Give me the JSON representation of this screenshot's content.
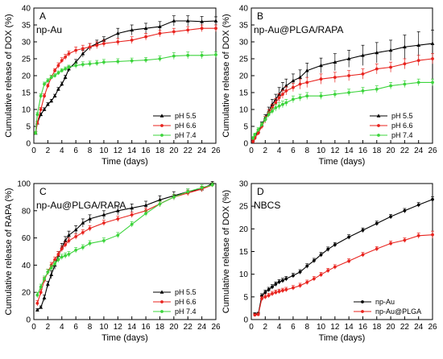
{
  "chart_data": [
    {
      "type": "line",
      "panel_letter": "A",
      "panel_title": "np-Au",
      "xlabel": "Time (days)",
      "ylabel": "Cumulative release of DOX (%)",
      "xlim": [
        0,
        26
      ],
      "ylim": [
        0,
        40
      ],
      "xticks": [
        0,
        2,
        4,
        6,
        8,
        10,
        12,
        14,
        16,
        18,
        20,
        22,
        24,
        26
      ],
      "yticks": [
        0,
        5,
        10,
        15,
        20,
        25,
        30,
        35,
        40
      ],
      "legend_position": "bottom-right",
      "series": [
        {
          "name": "pH 5.5",
          "color": "#000000",
          "marker": "triangle",
          "x": [
            0.25,
            0.5,
            1,
            1.5,
            2,
            2.5,
            3,
            3.5,
            4,
            4.5,
            5,
            6,
            7,
            8,
            9,
            10,
            12,
            14,
            16,
            18,
            20,
            22,
            24,
            26
          ],
          "y": [
            3,
            6,
            8.5,
            10,
            11.5,
            12.5,
            14,
            16,
            17.5,
            19.5,
            22,
            24,
            26.5,
            28.5,
            29.5,
            30.5,
            32.5,
            33.5,
            34,
            34.5,
            36.2,
            36.2,
            36,
            36.2
          ],
          "err": [
            0.5,
            0.5,
            0.5,
            0.5,
            0.5,
            0.5,
            0.5,
            0.5,
            0.6,
            0.6,
            0.8,
            0.8,
            1,
            1,
            1,
            1,
            1.5,
            1.5,
            1.5,
            1.5,
            1.5,
            1.5,
            1.5,
            1.2
          ]
        },
        {
          "name": "pH 6.6",
          "color": "#e8231e",
          "marker": "circle",
          "x": [
            0.25,
            0.5,
            1,
            1.5,
            2,
            2.5,
            3,
            3.5,
            4,
            4.5,
            5,
            6,
            7,
            8,
            9,
            10,
            12,
            14,
            16,
            18,
            20,
            22,
            24,
            26
          ],
          "y": [
            3,
            6,
            10,
            14,
            17,
            19.5,
            21.5,
            23,
            24.5,
            25.5,
            26.5,
            27.5,
            28,
            28.5,
            29,
            29.5,
            30,
            30.5,
            31.5,
            32.5,
            33,
            33.5,
            34,
            34
          ],
          "err": [
            0.5,
            0.5,
            0.6,
            0.6,
            0.6,
            0.6,
            0.6,
            0.8,
            0.8,
            0.8,
            0.8,
            1,
            1,
            1,
            1,
            1,
            1,
            1,
            1,
            1,
            1,
            1,
            1,
            1
          ]
        },
        {
          "name": "pH 7.4",
          "color": "#3cd43c",
          "marker": "circle",
          "x": [
            0.25,
            0.5,
            1,
            1.5,
            2,
            2.5,
            3,
            3.5,
            4,
            4.5,
            5,
            6,
            7,
            8,
            9,
            10,
            12,
            14,
            16,
            18,
            20,
            22,
            24,
            26
          ],
          "y": [
            3,
            8.5,
            14,
            17.5,
            18.5,
            19.5,
            20,
            20.8,
            21.5,
            22,
            22.5,
            23,
            23.3,
            23.5,
            23.7,
            24,
            24.2,
            24.4,
            24.6,
            25,
            25.8,
            26,
            26,
            26.2
          ],
          "err": [
            0.5,
            0.6,
            0.6,
            0.6,
            0.6,
            0.6,
            0.6,
            0.6,
            0.6,
            0.6,
            0.6,
            0.8,
            0.8,
            0.8,
            0.8,
            0.8,
            0.8,
            0.8,
            0.8,
            0.8,
            1,
            1,
            1,
            0.8
          ]
        }
      ]
    },
    {
      "type": "line",
      "panel_letter": "B",
      "panel_title": "np-Au@PLGA/RAPA",
      "xlabel": "Time (days)",
      "ylabel": "Cumulative release of DOX (%)",
      "xlim": [
        0,
        26
      ],
      "ylim": [
        0,
        40
      ],
      "xticks": [
        0,
        2,
        4,
        6,
        8,
        10,
        12,
        14,
        16,
        18,
        20,
        22,
        24,
        26
      ],
      "yticks": [
        0,
        5,
        10,
        15,
        20,
        25,
        30,
        35,
        40
      ],
      "legend_position": "bottom-right",
      "series": [
        {
          "name": "pH 5.5",
          "color": "#000000",
          "marker": "triangle",
          "x": [
            0.25,
            0.5,
            1,
            1.5,
            2,
            2.5,
            3,
            3.5,
            4,
            4.5,
            5,
            6,
            7,
            8,
            10,
            12,
            14,
            16,
            18,
            20,
            22,
            24,
            26
          ],
          "y": [
            1,
            2,
            3.5,
            5.5,
            7.5,
            9.5,
            11.5,
            13,
            14.5,
            16,
            17,
            18.5,
            19.5,
            21.5,
            23,
            24,
            25,
            26,
            26.8,
            27.5,
            28.5,
            29,
            29.5
          ],
          "err": [
            0.5,
            0.5,
            0.6,
            0.8,
            1,
            1.2,
            1.5,
            1.5,
            2,
            2,
            2,
            2,
            2.2,
            2.2,
            2.2,
            2.5,
            2.5,
            3,
            3,
            3,
            3.5,
            4,
            4
          ]
        },
        {
          "name": "pH 6.6",
          "color": "#e8231e",
          "marker": "circle",
          "x": [
            0.25,
            0.5,
            1,
            1.5,
            2,
            2.5,
            3,
            3.5,
            4,
            4.5,
            5,
            6,
            7,
            8,
            10,
            12,
            14,
            16,
            18,
            20,
            22,
            24,
            26
          ],
          "y": [
            0.5,
            1.5,
            3,
            5,
            7,
            9,
            10.5,
            12,
            13.5,
            14.5,
            15.5,
            16.5,
            17.5,
            18,
            19,
            19.5,
            20,
            20.5,
            22,
            22.5,
            23.5,
            24.5,
            25
          ],
          "err": [
            0.5,
            0.5,
            0.6,
            0.8,
            1,
            1,
            1,
            1.2,
            1.2,
            1.2,
            1.2,
            1.2,
            1.5,
            1.5,
            1.5,
            1.5,
            1.5,
            1.5,
            1.5,
            1.5,
            1.5,
            1.5,
            1.5
          ]
        },
        {
          "name": "pH 7.4",
          "color": "#3cd43c",
          "marker": "circle",
          "x": [
            0.25,
            0.5,
            1,
            1.5,
            2,
            2.5,
            3,
            3.5,
            4,
            4.5,
            5,
            6,
            7,
            8,
            10,
            12,
            14,
            16,
            18,
            20,
            22,
            24,
            26
          ],
          "y": [
            1.5,
            2.5,
            4,
            5.5,
            7,
            8.5,
            9.5,
            10.5,
            11,
            11.5,
            12,
            13,
            13.5,
            14,
            14,
            14.5,
            15,
            15.5,
            16,
            17,
            17.5,
            18,
            18
          ],
          "err": [
            0.5,
            0.5,
            0.6,
            0.6,
            0.8,
            0.8,
            0.8,
            1,
            1,
            1,
            1,
            1,
            1,
            1,
            1,
            1,
            1,
            1,
            1,
            1,
            1,
            1,
            1
          ]
        }
      ]
    },
    {
      "type": "line",
      "panel_letter": "C",
      "panel_title": "np-Au@PLGA/RAPA",
      "xlabel": "Time (days)",
      "ylabel": "Cumulative release of RAPA (%)",
      "xlim": [
        0,
        26
      ],
      "ylim": [
        0,
        100
      ],
      "xticks": [
        0,
        2,
        4,
        6,
        8,
        10,
        12,
        14,
        16,
        18,
        20,
        22,
        24,
        26
      ],
      "yticks": [
        0,
        20,
        40,
        60,
        80,
        100
      ],
      "legend_position": "bottom-right",
      "series": [
        {
          "name": "pH 5.5",
          "color": "#000000",
          "marker": "triangle",
          "x": [
            0.5,
            1,
            1.5,
            2,
            2.5,
            3,
            3.5,
            4,
            4.5,
            5,
            6,
            7,
            8,
            10,
            12,
            14,
            16,
            18,
            20,
            22,
            24,
            25.5
          ],
          "y": [
            7,
            9,
            16,
            26,
            33,
            40,
            47,
            53,
            58,
            62,
            66,
            71,
            74,
            77,
            80,
            82,
            84,
            88,
            91,
            94,
            96,
            100
          ],
          "err": [
            1,
            1,
            2,
            2,
            3,
            3,
            3,
            3,
            3,
            3,
            3,
            3,
            3,
            3,
            3,
            3,
            3,
            3,
            3,
            2,
            2,
            1.5
          ]
        },
        {
          "name": "pH 6.6",
          "color": "#e8231e",
          "marker": "circle",
          "x": [
            0.5,
            1,
            1.5,
            2,
            2.5,
            3,
            3.5,
            4,
            4.5,
            5,
            6,
            7,
            8,
            10,
            12,
            14,
            16,
            18,
            20,
            22,
            24,
            25.5
          ],
          "y": [
            12,
            20,
            29,
            35,
            40,
            44,
            48,
            52,
            55,
            58,
            61,
            64,
            67,
            71,
            74,
            77,
            80,
            85,
            90,
            93,
            96,
            99
          ],
          "err": [
            2,
            2,
            2,
            2,
            2,
            2,
            2,
            2,
            2,
            2,
            2,
            2,
            2,
            2,
            2,
            2,
            2,
            2,
            2,
            2,
            2,
            1.5
          ]
        },
        {
          "name": "pH 7.4",
          "color": "#3cd43c",
          "marker": "circle",
          "x": [
            0.5,
            1,
            1.5,
            2,
            2.5,
            3,
            3.5,
            4,
            4.5,
            5,
            6,
            7,
            8,
            10,
            12,
            14,
            16,
            18,
            20,
            22,
            24,
            25.5
          ],
          "y": [
            18,
            24,
            30,
            35,
            38,
            41,
            44,
            46,
            47,
            48,
            51,
            53,
            56,
            58,
            62,
            70,
            78,
            85,
            90,
            94,
            97,
            99
          ],
          "err": [
            2,
            2,
            2,
            2,
            2,
            2,
            2,
            2,
            2,
            2,
            2,
            2,
            2,
            2,
            2,
            2,
            2,
            2,
            2,
            2,
            2,
            1.5
          ]
        }
      ]
    },
    {
      "type": "line",
      "panel_letter": "D",
      "panel_title": "NBCS",
      "xlabel": "Time (days)",
      "ylabel": "Cumulative release of DOX (%)",
      "xlim": [
        0,
        26
      ],
      "ylim": [
        0,
        30
      ],
      "xticks": [
        0,
        2,
        4,
        6,
        8,
        10,
        12,
        14,
        16,
        18,
        20,
        22,
        24,
        26
      ],
      "yticks": [
        0,
        5,
        10,
        15,
        20,
        25,
        30
      ],
      "legend_position": "bottom-right",
      "series": [
        {
          "name": "np-Au",
          "color": "#000000",
          "marker": "circle",
          "x": [
            0.5,
            1,
            1.5,
            2,
            2.5,
            3,
            3.5,
            4,
            4.5,
            5,
            6,
            7,
            8,
            9,
            10,
            11,
            12,
            14,
            16,
            18,
            20,
            22,
            24,
            26
          ],
          "y": [
            1.2,
            1.3,
            5.2,
            6.0,
            6.6,
            7.2,
            7.8,
            8.3,
            8.6,
            9.0,
            9.7,
            10.5,
            11.8,
            13.0,
            14.3,
            15.5,
            16.5,
            18.2,
            19.7,
            21.2,
            22.7,
            24.0,
            25.3,
            26.5
          ],
          "err": [
            0.3,
            0.3,
            0.5,
            0.5,
            0.5,
            0.5,
            0.5,
            0.5,
            0.5,
            0.5,
            0.5,
            0.5,
            0.5,
            0.5,
            0.5,
            0.5,
            0.5,
            0.5,
            0.5,
            0.5,
            0.5,
            0.5,
            0.5,
            0.6
          ]
        },
        {
          "name": "np-Au@PLGA",
          "color": "#e8231e",
          "marker": "circle",
          "x": [
            0.5,
            1,
            1.5,
            2,
            2.5,
            3,
            3.5,
            4,
            4.5,
            5,
            6,
            7,
            8,
            9,
            10,
            11,
            12,
            14,
            16,
            18,
            20,
            22,
            24,
            26
          ],
          "y": [
            1.0,
            1.1,
            4.6,
            5.0,
            5.3,
            5.7,
            6.0,
            6.2,
            6.4,
            6.6,
            7.0,
            7.5,
            8.2,
            9.0,
            9.9,
            10.8,
            11.6,
            12.9,
            14.3,
            15.6,
            16.8,
            17.5,
            18.5,
            18.7
          ],
          "err": [
            0.3,
            0.3,
            0.5,
            0.5,
            0.5,
            0.5,
            0.5,
            0.5,
            0.5,
            0.5,
            0.5,
            0.5,
            0.5,
            0.5,
            0.5,
            0.5,
            0.5,
            0.5,
            0.5,
            0.5,
            0.5,
            0.5,
            0.6,
            0.8
          ]
        }
      ]
    }
  ]
}
